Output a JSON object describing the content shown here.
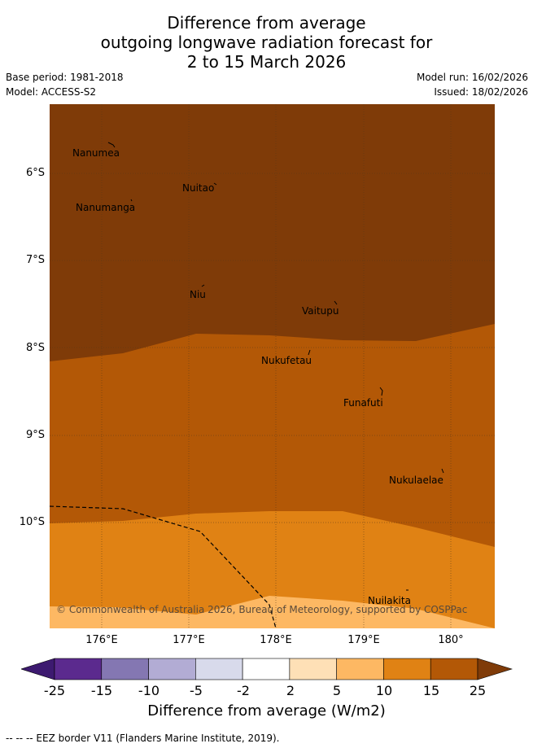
{
  "title": {
    "line1": "Difference from average",
    "line2": "outgoing longwave radiation forecast for",
    "line3": "2 to 15 March 2026"
  },
  "meta": {
    "base_period": "Base period: 1981-2018",
    "model": "Model: ACCESS-S2",
    "model_run": "Model run: 16/02/2026",
    "issued": "Issued: 18/02/2026"
  },
  "places": [
    {
      "name": "Nanumea"
    },
    {
      "name": "Nuitao"
    },
    {
      "name": "Nanumanga"
    },
    {
      "name": "Niu"
    },
    {
      "name": "Vaitupu"
    },
    {
      "name": "Nukufetau"
    },
    {
      "name": "Funafuti"
    },
    {
      "name": "Nukulaelae"
    },
    {
      "name": "Nuilakita"
    }
  ],
  "copyright": "© Commonwealth of Australia 2026, Bureau of Meteorology, supported by COSPPac",
  "axes": {
    "lat_labels": [
      "6°S",
      "7°S",
      "8°S",
      "9°S",
      "10°S"
    ],
    "lon_labels": [
      "176°E",
      "177°E",
      "178°E",
      "179°E",
      "180°"
    ]
  },
  "colorbar": {
    "ticks": [
      "-25",
      "-15",
      "-10",
      "-5",
      "-2",
      "2",
      "5",
      "10",
      "15",
      "25"
    ],
    "colors": [
      "#3d1a70",
      "#5b2a8e",
      "#8477b2",
      "#b2acd4",
      "#d8daeb",
      "#ffffff",
      "#fee0b6",
      "#fdb863",
      "#e08214",
      "#b35806",
      "#7f3b08"
    ],
    "label": "Difference from average (W/m2)"
  },
  "legend_note": "--  --  -- EEZ border V11 (Flanders Marine Institute, 2019)."
}
